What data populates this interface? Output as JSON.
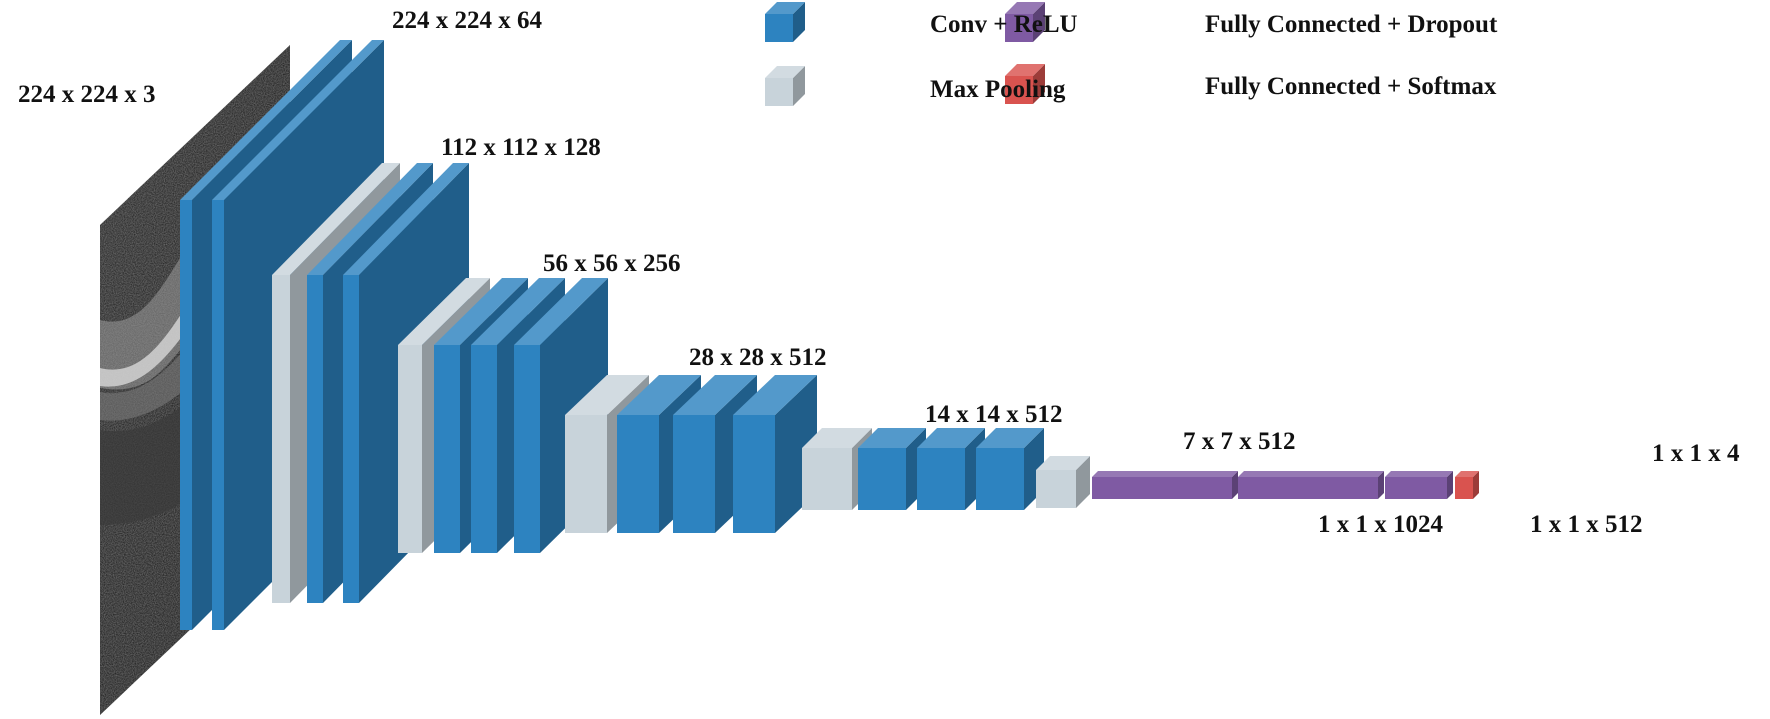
{
  "legend": {
    "conv_relu": "Conv + ReLU",
    "max_pooling": "Max Pooling",
    "fc_dropout": "Fully Connected + Dropout",
    "fc_softmax": "Fully Connected + Softmax"
  },
  "colors": {
    "conv": "#2d83c0",
    "pool": "#c8d3da",
    "fc_dropout": "#7f5aa3",
    "fc_softmax": "#d9534f"
  },
  "input_image": "grayscale OCT retinal scan",
  "layers": {
    "input": "224 x 224 x 3",
    "block1": "224 x 224 x 64",
    "block2": "112 x 112 x 128",
    "block3": "56 x 56 x 256",
    "block4": "28 x 28 x 512",
    "block5": "14 x 14 x 512",
    "pool5": "7 x 7 x 512",
    "fc1": "1 x 1 x 1024",
    "fc2": "1 x 1 x 512",
    "output": "1 x 1 x 4"
  }
}
